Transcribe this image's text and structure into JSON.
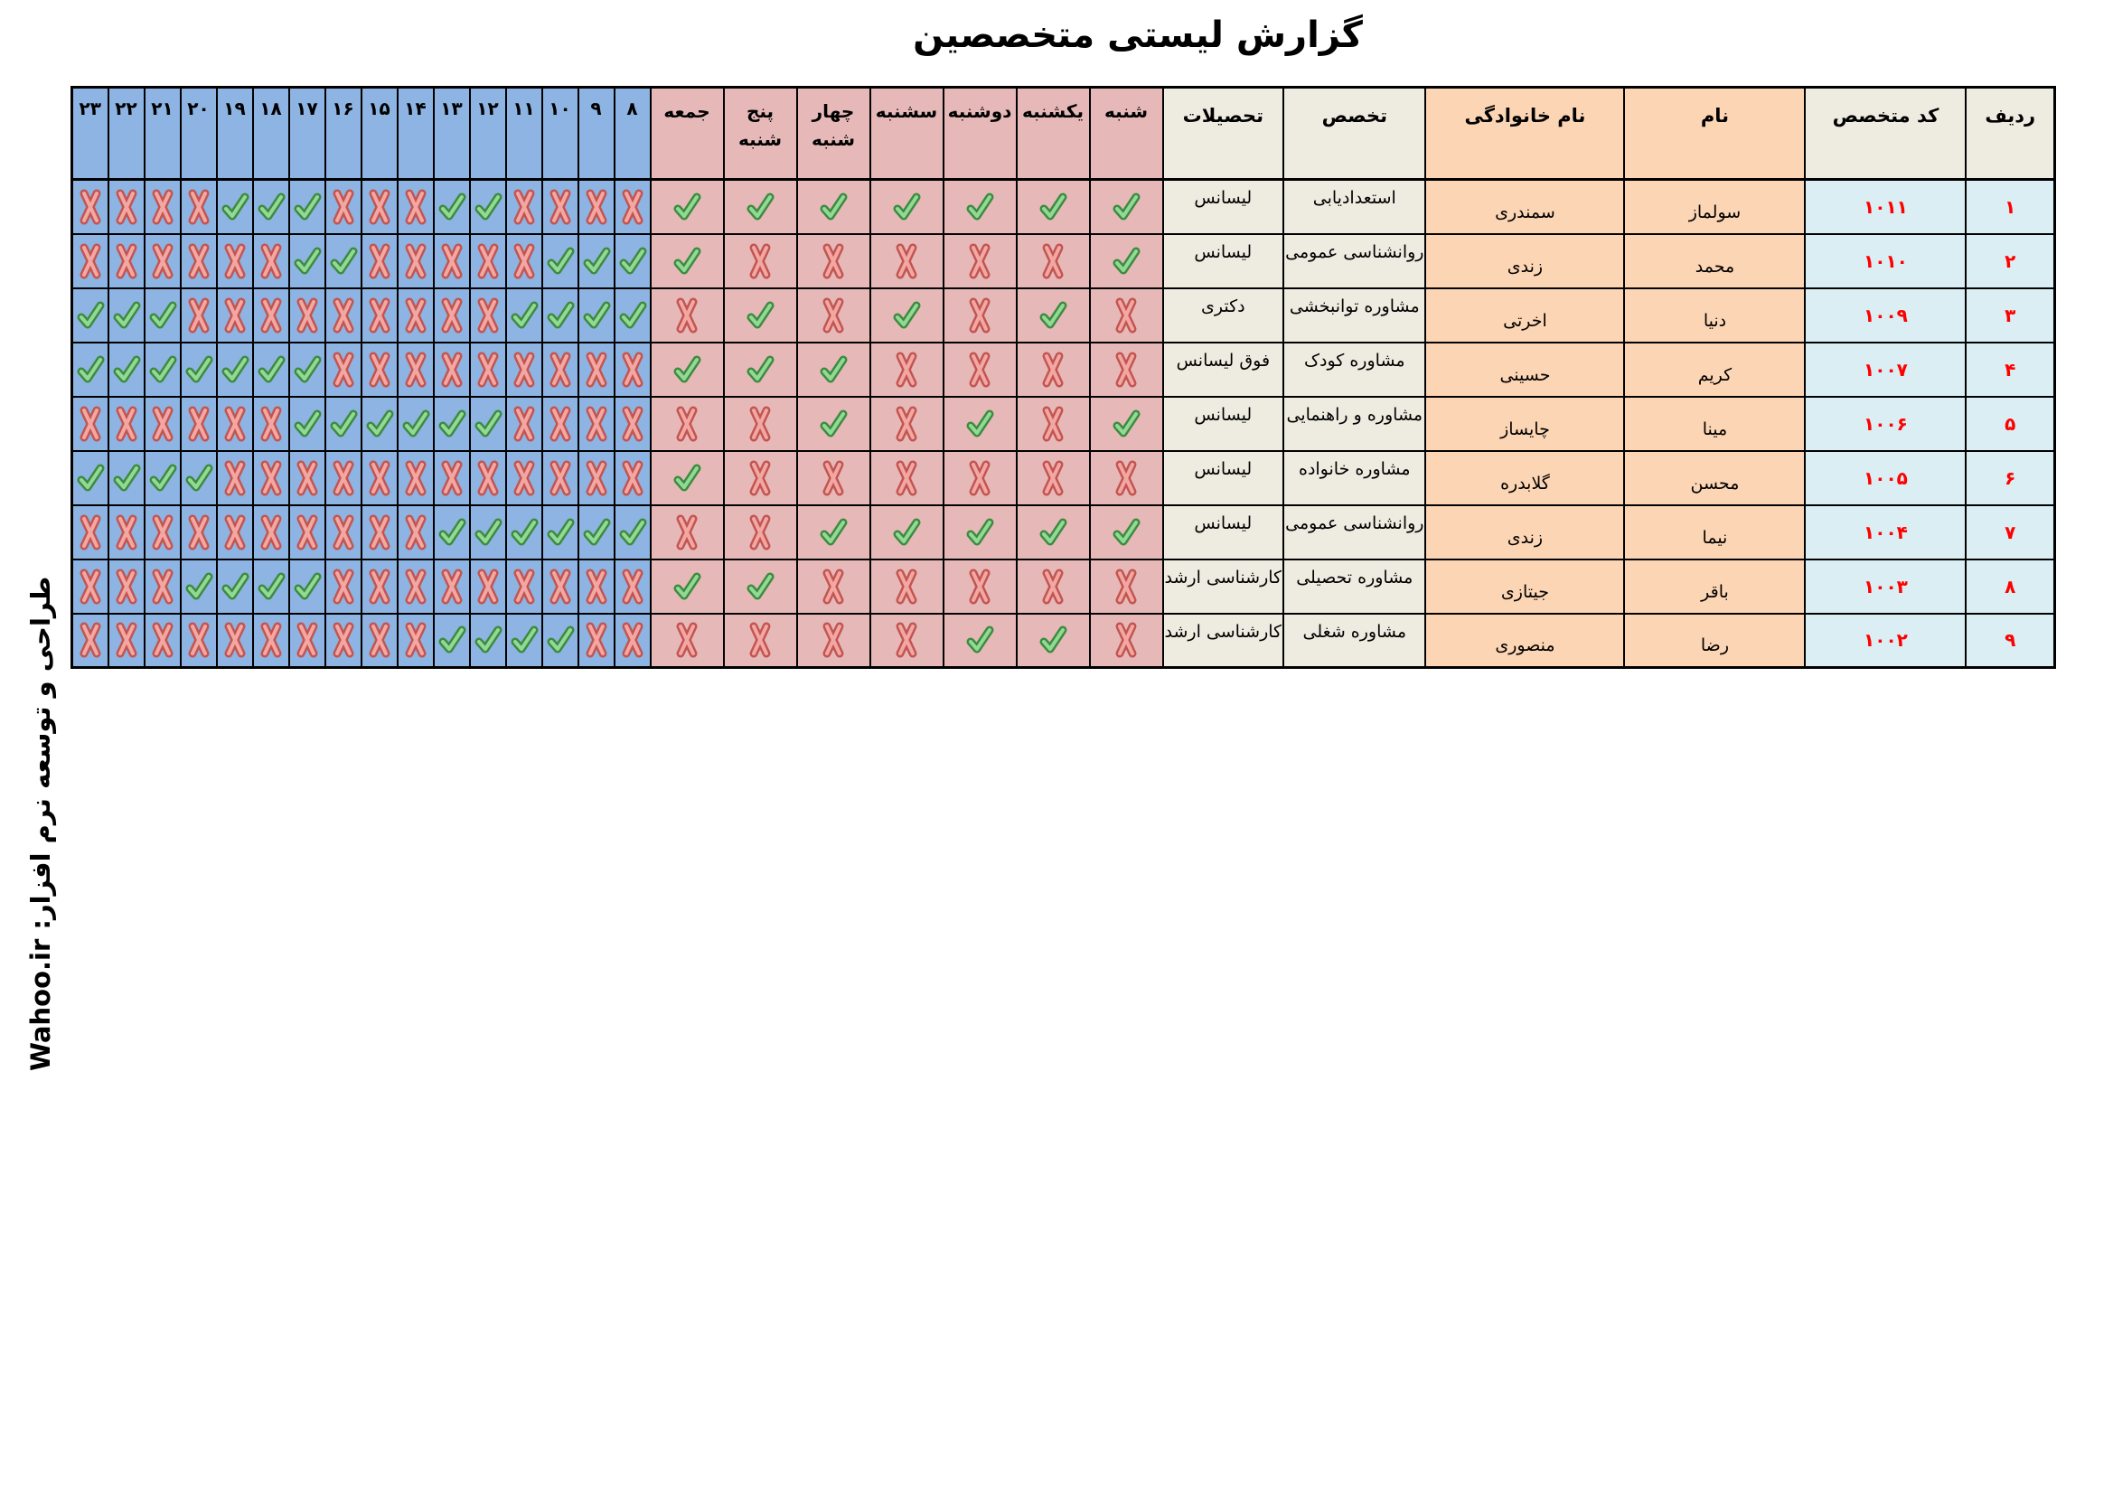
{
  "title": "گزارش لیستی متخصصین",
  "credit": "طراحی و توسعه نرم افزار:  Wahoo.ir",
  "colors": {
    "header_beige": "#eeece1",
    "name_orange": "#fcd5b4",
    "day_rose": "#e6b9b8",
    "hour_blue": "#8db4e2",
    "code_cell_blue": "#daeef3",
    "code_text_red": "#ff0000",
    "border_black": "#000000",
    "check_green_dark": "#3d8b40",
    "check_green_light": "#93d996",
    "cross_red_dark": "#c25551",
    "cross_red_light": "#f3a7a3"
  },
  "table": {
    "headers": {
      "row": "ردیف",
      "code": "کد متخصص",
      "first_name": "نام",
      "last_name": "نام خانوادگی",
      "specialty": "تخصص",
      "education": "تحصیلات",
      "days": [
        "شنبه",
        "یکشنبه",
        "دوشنبه",
        "سشنبه",
        "چهار شنبه",
        "پنج شنبه",
        "جمعه"
      ],
      "hours": [
        "۸",
        "۹",
        "۱۰",
        "۱۱",
        "۱۲",
        "۱۳",
        "۱۴",
        "۱۵",
        "۱۶",
        "۱۷",
        "۱۸",
        "۱۹",
        "۲۰",
        "۲۱",
        "۲۲",
        "۲۳"
      ]
    },
    "rows": [
      {
        "row": "۱",
        "code": "۱۰۱۱",
        "first_name": "سولماز",
        "last_name": "سمندری",
        "specialty": "استعدادیابی",
        "education": "لیسانس",
        "days": [
          1,
          1,
          1,
          1,
          1,
          1,
          1
        ],
        "hours": [
          0,
          0,
          0,
          0,
          1,
          1,
          0,
          0,
          0,
          1,
          1,
          1,
          0,
          0,
          0,
          0
        ]
      },
      {
        "row": "۲",
        "code": "۱۰۱۰",
        "first_name": "محمد",
        "last_name": "زندی",
        "specialty": "روانشناسی  عمومی",
        "education": "لیسانس",
        "days": [
          1,
          0,
          0,
          0,
          0,
          0,
          1
        ],
        "hours": [
          1,
          1,
          1,
          0,
          0,
          0,
          0,
          0,
          1,
          1,
          0,
          0,
          0,
          0,
          0,
          0
        ]
      },
      {
        "row": "۳",
        "code": "۱۰۰۹",
        "first_name": "دنیا",
        "last_name": "اخرتی",
        "specialty": "مشاوره توانبخشی",
        "education": "دکتری",
        "days": [
          0,
          1,
          0,
          1,
          0,
          1,
          0
        ],
        "hours": [
          1,
          1,
          1,
          1,
          0,
          0,
          0,
          0,
          0,
          0,
          0,
          0,
          0,
          1,
          1,
          1
        ]
      },
      {
        "row": "۴",
        "code": "۱۰۰۷",
        "first_name": "کریم",
        "last_name": "حسینی",
        "specialty": "مشاوره کودک",
        "education": "فوق لیسانس",
        "days": [
          0,
          0,
          0,
          0,
          1,
          1,
          1
        ],
        "hours": [
          0,
          0,
          0,
          0,
          0,
          0,
          0,
          0,
          0,
          1,
          1,
          1,
          1,
          1,
          1,
          1
        ]
      },
      {
        "row": "۵",
        "code": "۱۰۰۶",
        "first_name": "مینا",
        "last_name": "چایساز",
        "specialty": "مشاوره و راهنمایی",
        "education": "لیسانس",
        "days": [
          1,
          0,
          1,
          0,
          1,
          0,
          0
        ],
        "hours": [
          0,
          0,
          0,
          0,
          1,
          1,
          1,
          1,
          1,
          1,
          0,
          0,
          0,
          0,
          0,
          0
        ]
      },
      {
        "row": "۶",
        "code": "۱۰۰۵",
        "first_name": "محسن",
        "last_name": "گلابدره",
        "specialty": "مشاوره خانواده",
        "education": "لیسانس",
        "days": [
          0,
          0,
          0,
          0,
          0,
          0,
          1
        ],
        "hours": [
          0,
          0,
          0,
          0,
          0,
          0,
          0,
          0,
          0,
          0,
          0,
          0,
          1,
          1,
          1,
          1
        ]
      },
      {
        "row": "۷",
        "code": "۱۰۰۴",
        "first_name": "نیما",
        "last_name": "زندی",
        "specialty": "روانشناسی  عمومی",
        "education": "لیسانس",
        "days": [
          1,
          1,
          1,
          1,
          1,
          0,
          0
        ],
        "hours": [
          1,
          1,
          1,
          1,
          1,
          1,
          0,
          0,
          0,
          0,
          0,
          0,
          0,
          0,
          0,
          0
        ]
      },
      {
        "row": "۸",
        "code": "۱۰۰۳",
        "first_name": "باقر",
        "last_name": "جیتازی",
        "specialty": "مشاوره تحصیلی",
        "education": "کارشناسی ارشد",
        "days": [
          0,
          0,
          0,
          0,
          0,
          1,
          1
        ],
        "hours": [
          0,
          0,
          0,
          0,
          0,
          0,
          0,
          0,
          0,
          1,
          1,
          1,
          1,
          0,
          0,
          0
        ]
      },
      {
        "row": "۹",
        "code": "۱۰۰۲",
        "first_name": "رضا",
        "last_name": "منصوری",
        "specialty": "مشاوره شغلی",
        "education": "کارشناسی ارشد",
        "days": [
          0,
          1,
          1,
          0,
          0,
          0,
          0
        ],
        "hours": [
          0,
          0,
          1,
          1,
          1,
          1,
          0,
          0,
          0,
          0,
          0,
          0,
          0,
          0,
          0,
          0
        ]
      }
    ]
  }
}
